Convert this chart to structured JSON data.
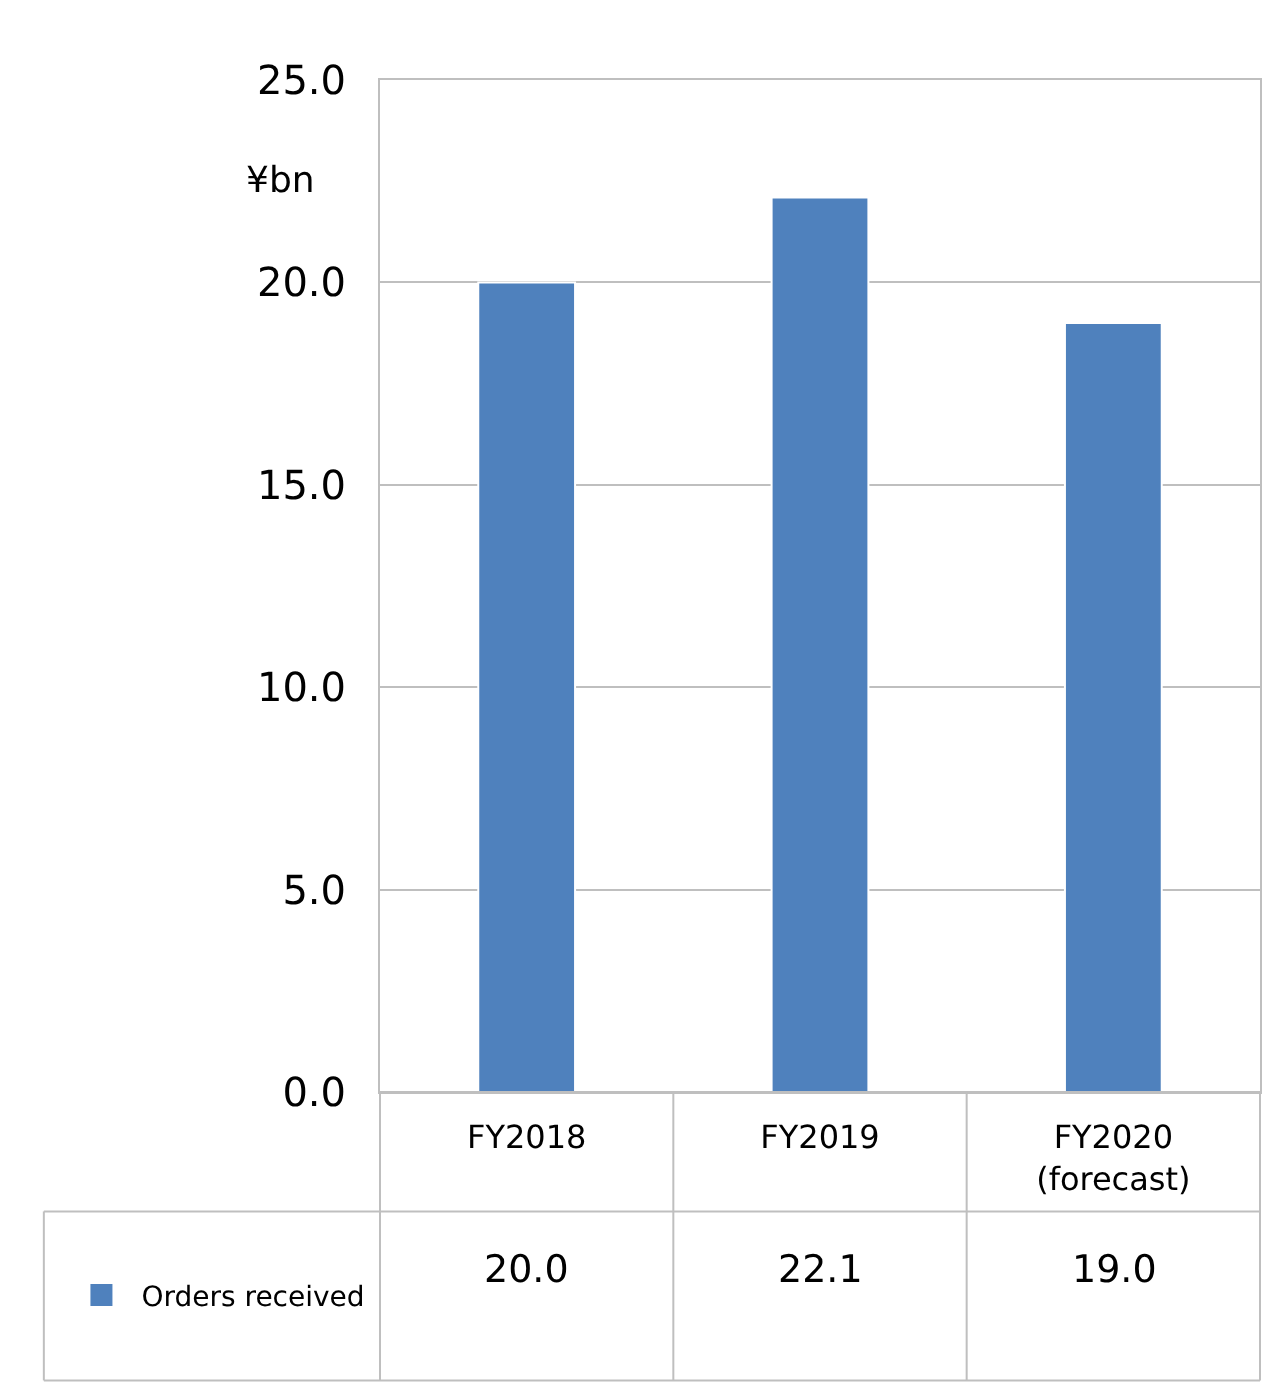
{
  "chart_data": {
    "type": "bar",
    "ylabel": "¥bn",
    "categories": [
      "FY2018",
      "FY2019",
      "FY2020 (forecast)"
    ],
    "series": [
      {
        "name": "Orders received",
        "color": "#4f81bd",
        "values": [
          20.0,
          22.1,
          19.0
        ],
        "value_labels": [
          "20.0",
          "22.1",
          "19.0"
        ]
      }
    ],
    "ylim": [
      0,
      25
    ],
    "yticks": [
      {
        "value": 0,
        "label": "0.0"
      },
      {
        "value": 5,
        "label": "5.0"
      },
      {
        "value": 10,
        "label": "10.0"
      },
      {
        "value": 15,
        "label": "15.0"
      },
      {
        "value": 20,
        "label": "20.0"
      },
      {
        "value": 25,
        "label": "25.0"
      }
    ],
    "grid": "y",
    "legend": "bottom left"
  }
}
